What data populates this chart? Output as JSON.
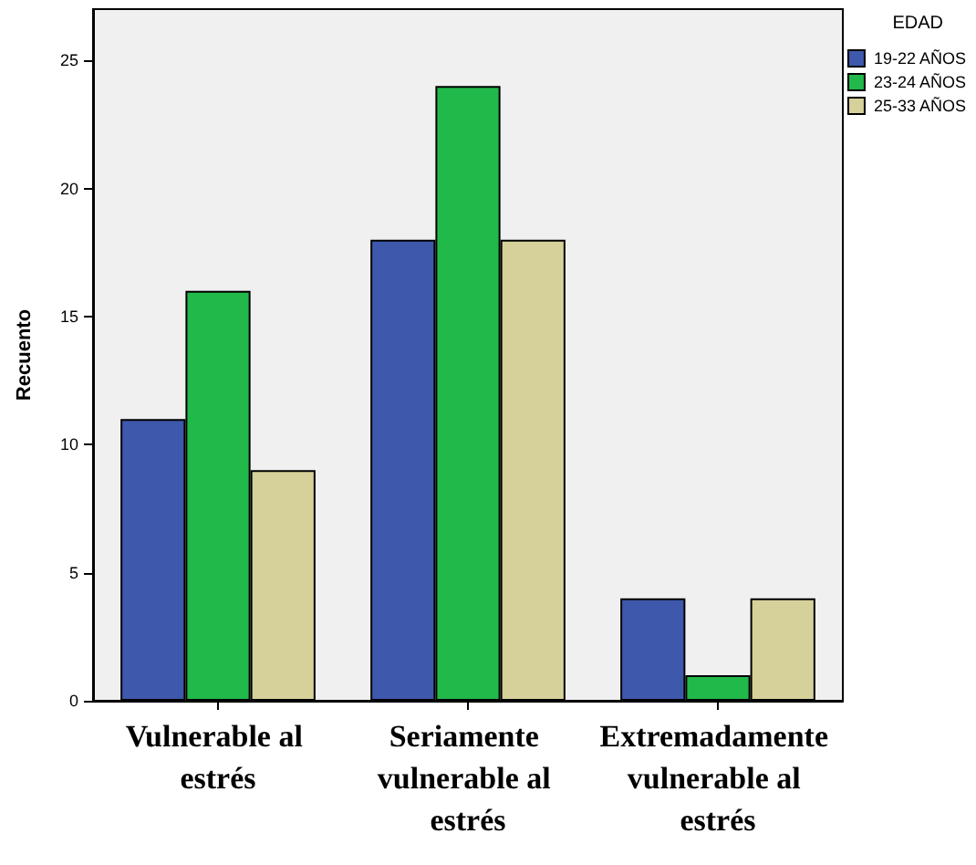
{
  "chart_data": {
    "type": "bar",
    "ylabel": "Recuento",
    "legend_title": "EDAD",
    "categories": [
      "Vulnerable al estrés",
      "Seriamente vulnerable al estrés",
      "Extremadamente vulnerable al estrés"
    ],
    "series": [
      {
        "name": "19-22 AÑOS",
        "color": "#3e58ac",
        "values": [
          11,
          18,
          4
        ]
      },
      {
        "name": "23-24 AÑOS",
        "color": "#21b94a",
        "values": [
          16,
          24,
          1
        ]
      },
      {
        "name": "25-33 AÑOS",
        "color": "#d6d09a",
        "values": [
          9,
          18,
          4
        ]
      }
    ],
    "ylim": [
      0,
      27
    ],
    "yticks": [
      0,
      5,
      10,
      15,
      20,
      25
    ],
    "grid": false,
    "legend": "top right"
  }
}
